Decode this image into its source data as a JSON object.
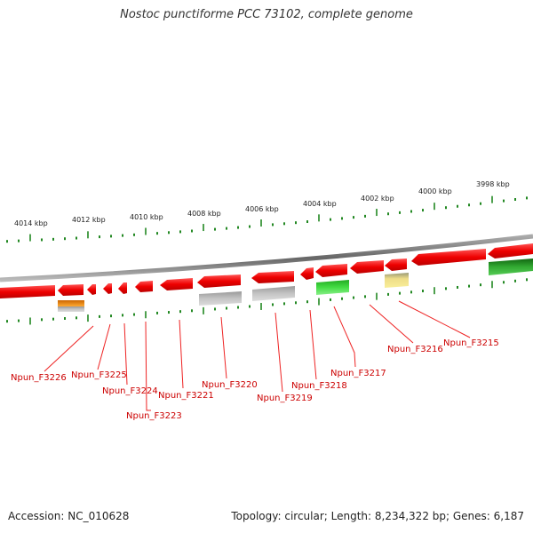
{
  "title": "Nostoc punctiforme PCC 73102, complete genome",
  "footer": {
    "accession": "Accession: NC_010628",
    "summary": "Topology: circular; Length: 8,234,322 bp; Genes: 6,187"
  },
  "scale_labels": [
    "4014 kbp",
    "4012 kbp",
    "4010 kbp",
    "4008 kbp",
    "4006 kbp",
    "4004 kbp",
    "4002 kbp",
    "4000 kbp",
    "3998 kbp"
  ],
  "gene_labels": [
    "Npun_F3226",
    "Npun_F3225",
    "Npun_F3224",
    "Npun_F3223",
    "Npun_F3221",
    "Npun_F3220",
    "Npun_F3219",
    "Npun_F3218",
    "Npun_F3217",
    "Npun_F3216",
    "Npun_F3215"
  ],
  "colors": {
    "gene_red": "#ee0000",
    "backbone": "#888888",
    "tick_green": "#228822",
    "label_red": "#cc0000",
    "feature_orange": "#f0900f",
    "feature_gray": "#b0b0b0",
    "feature_green": "#33cc33",
    "feature_dark_green": "#229922",
    "feature_yellow": "#eedd88"
  }
}
